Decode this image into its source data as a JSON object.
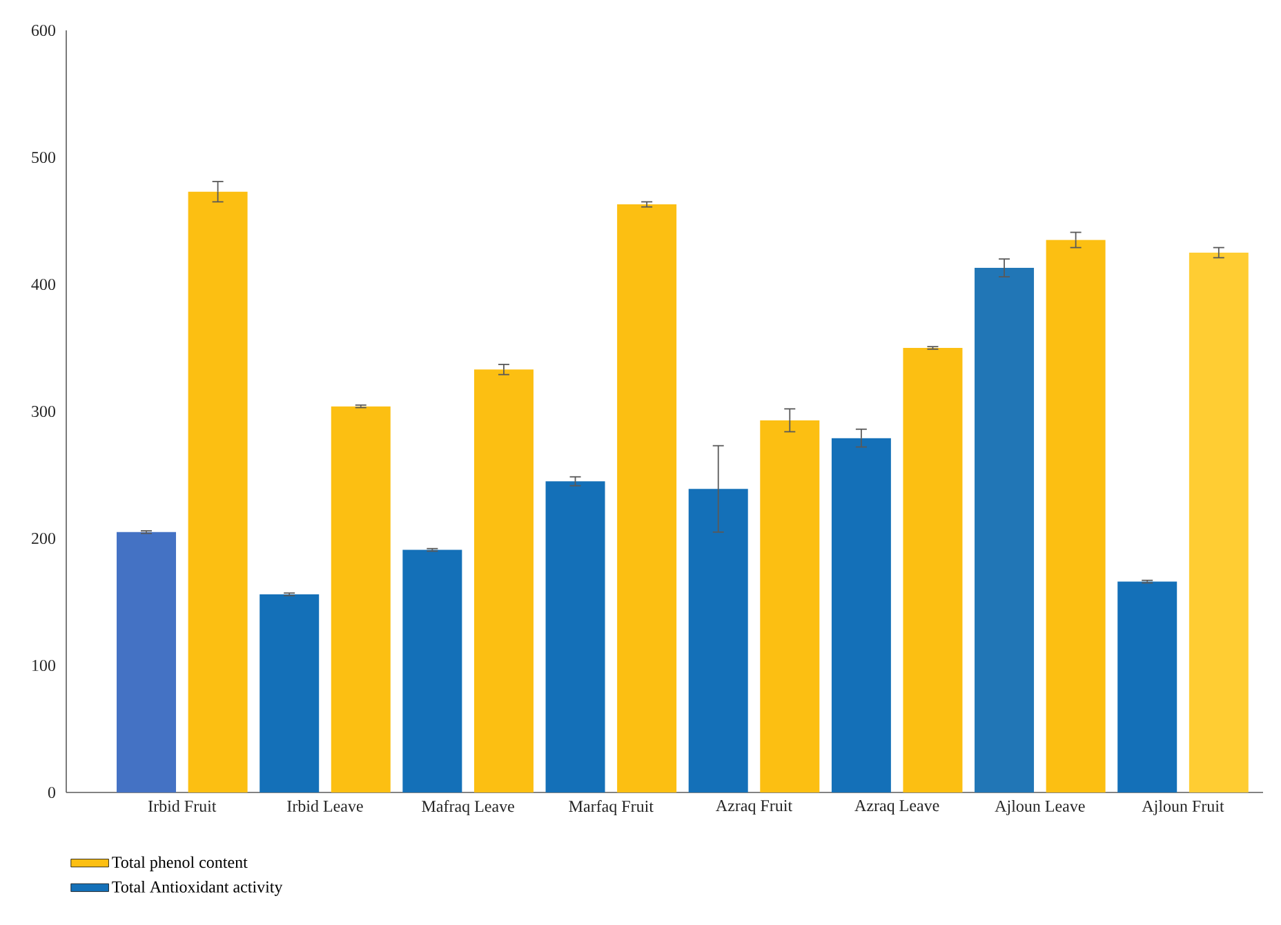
{
  "chart_data": {
    "type": "bar",
    "categories": [
      "Irbid Fruit",
      "Irbid Leave",
      "Mafraq Leave",
      "Marfaq Fruit",
      "Azraq Fruit",
      "Azraq Leave",
      "Ajloun Leave",
      "Ajloun Fruit"
    ],
    "series": [
      {
        "name": "Total Antioxidant activity",
        "color": "#1470b8",
        "colors": [
          "#4472c4",
          "#1470b8",
          "#1470b8",
          "#1470b8",
          "#1470b8",
          "#1470b8",
          "#2176b6",
          "#1470b8"
        ],
        "values": [
          205,
          156,
          191,
          245,
          239,
          279,
          413,
          166
        ],
        "errors": [
          1,
          1,
          1,
          3.5,
          34,
          7,
          7,
          1
        ]
      },
      {
        "name": "Total phenol content",
        "color": "#fcbf12",
        "colors": [
          "#fcbf12",
          "#fcbf12",
          "#fcbf12",
          "#fcbf12",
          "#fcbf12",
          "#fcbf12",
          "#fcbf12",
          "#ffcd33"
        ],
        "values": [
          473,
          304,
          333,
          463,
          293,
          350,
          435,
          425
        ],
        "errors": [
          8,
          1,
          4,
          2,
          9,
          1,
          6,
          4
        ]
      }
    ],
    "ylim": [
      0,
      600
    ],
    "yticks": [
      0,
      100,
      200,
      300,
      400,
      500,
      600
    ],
    "grid": false,
    "legend": "bottom left"
  }
}
